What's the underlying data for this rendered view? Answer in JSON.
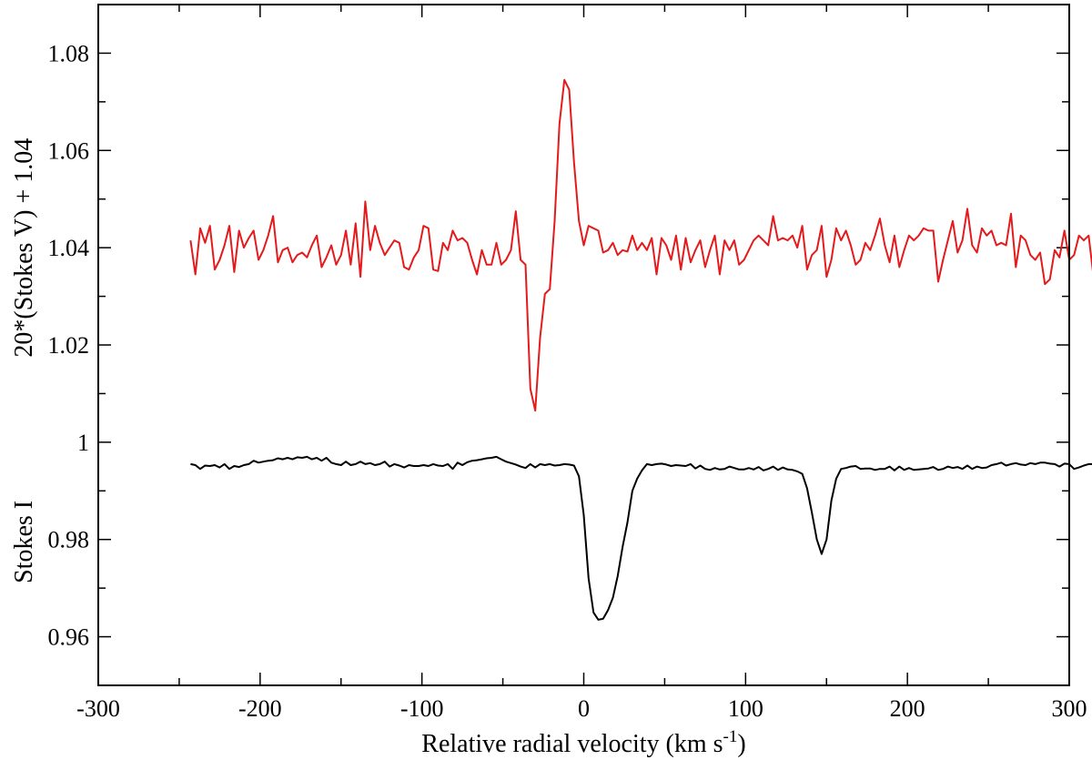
{
  "chart_data": {
    "type": "line",
    "title": "",
    "xlabel": {
      "prefix": "Relative radial velocity (km s",
      "superscript": "-1",
      "suffix": ")"
    },
    "ylabel_upper": "20*(Stokes V) + 1.04",
    "ylabel_lower": "Stokes I",
    "xlim": [
      -300,
      300
    ],
    "ylim": [
      0.95,
      1.09
    ],
    "x_ticks": [
      -300,
      -200,
      -100,
      0,
      100,
      200,
      300
    ],
    "x_tick_labels": [
      "-300",
      "-200",
      "-100",
      "0",
      "100",
      "200",
      "300"
    ],
    "y_ticks": [
      0.96,
      0.98,
      1.0,
      1.02,
      1.04,
      1.06,
      1.08
    ],
    "y_tick_labels": [
      "0.96",
      "0.98",
      "1",
      "1.02",
      "1.04",
      "1.06",
      "1.08"
    ],
    "grid": false,
    "legend": "none",
    "series": [
      {
        "color": "#e41a1c",
        "x_start": -243,
        "x_step": 3,
        "y": [
          1.0415,
          1.0345,
          1.044,
          1.041,
          1.0445,
          1.0355,
          1.0375,
          1.0405,
          1.0445,
          1.035,
          1.0435,
          1.04,
          1.042,
          1.0435,
          1.0375,
          1.0395,
          1.0425,
          1.0465,
          1.037,
          1.0395,
          1.04,
          1.037,
          1.0385,
          1.039,
          1.038,
          1.0405,
          1.0425,
          1.036,
          1.038,
          1.0405,
          1.0365,
          1.0385,
          1.0435,
          1.0365,
          1.045,
          1.034,
          1.0495,
          1.0395,
          1.0445,
          1.041,
          1.0385,
          1.04,
          1.0415,
          1.041,
          1.036,
          1.0355,
          1.038,
          1.0395,
          1.0445,
          1.044,
          1.0355,
          1.0352,
          1.041,
          1.0395,
          1.0435,
          1.0415,
          1.042,
          1.041,
          1.0375,
          1.0345,
          1.0395,
          1.0365,
          1.0365,
          1.041,
          1.0365,
          1.0375,
          1.0395,
          1.0475,
          1.0375,
          1.0365,
          1.011,
          1.0065,
          1.0215,
          1.0305,
          1.0315,
          1.0455,
          1.0655,
          1.0745,
          1.0725,
          1.0575,
          1.0455,
          1.0405,
          1.0445,
          1.044,
          1.0435,
          1.039,
          1.0395,
          1.041,
          1.0385,
          1.0395,
          1.0392,
          1.0425,
          1.0395,
          1.041,
          1.0395,
          1.042,
          1.0345,
          1.042,
          1.0405,
          1.0375,
          1.0425,
          1.0355,
          1.042,
          1.037,
          1.0395,
          1.0415,
          1.036,
          1.0395,
          1.0425,
          1.0345,
          1.0415,
          1.0395,
          1.0415,
          1.0365,
          1.0375,
          1.0395,
          1.0415,
          1.0425,
          1.0415,
          1.0405,
          1.0465,
          1.0415,
          1.042,
          1.0415,
          1.0425,
          1.04,
          1.0445,
          1.0355,
          1.0385,
          1.0395,
          1.0445,
          1.034,
          1.0375,
          1.044,
          1.0415,
          1.0435,
          1.0405,
          1.0365,
          1.0375,
          1.041,
          1.0395,
          1.0425,
          1.046,
          1.0405,
          1.037,
          1.0425,
          1.036,
          1.0395,
          1.0425,
          1.0415,
          1.0425,
          1.044,
          1.0435,
          1.0435,
          1.033,
          1.0375,
          1.0415,
          1.0455,
          1.039,
          1.0415,
          1.048,
          1.0405,
          1.039,
          1.044,
          1.0425,
          1.0435,
          1.0405,
          1.041,
          1.0405,
          1.047,
          1.036,
          1.0425,
          1.0415,
          1.0385,
          1.0375,
          1.039,
          1.0325,
          1.0335,
          1.0395,
          1.038,
          1.0435,
          1.0375,
          1.0385,
          1.0425,
          1.0415,
          1.0425,
          1.034,
          1.0415,
          1.0485,
          1.0345,
          1.0355,
          1.0415,
          1.0395,
          1.0345,
          1.0415,
          1.0395
        ]
      },
      {
        "color": "#000000",
        "x_start": -243,
        "x_step": 3,
        "y": [
          0.9955,
          0.9953,
          0.9945,
          0.9952,
          0.9951,
          0.9953,
          0.9948,
          0.9955,
          0.9945,
          0.9951,
          0.9949,
          0.9953,
          0.9955,
          0.9962,
          0.9958,
          0.996,
          0.9962,
          0.9963,
          0.9967,
          0.9965,
          0.9968,
          0.9965,
          0.9969,
          0.9968,
          0.997,
          0.9965,
          0.9968,
          0.9962,
          0.9968,
          0.9958,
          0.9955,
          0.9953,
          0.996,
          0.9953,
          0.9955,
          0.996,
          0.9955,
          0.9957,
          0.9953,
          0.9955,
          0.996,
          0.995,
          0.9955,
          0.9952,
          0.9948,
          0.9953,
          0.9951,
          0.9951,
          0.9953,
          0.9951,
          0.9955,
          0.9952,
          0.9951,
          0.9955,
          0.9945,
          0.9958,
          0.9953,
          0.9959,
          0.9962,
          0.9963,
          0.9965,
          0.9967,
          0.9968,
          0.997,
          0.9965,
          0.996,
          0.9957,
          0.9954,
          0.995,
          0.9947,
          0.9955,
          0.9948,
          0.9955,
          0.9953,
          0.9955,
          0.9952,
          0.9953,
          0.9955,
          0.9954,
          0.9952,
          0.993,
          0.985,
          0.972,
          0.965,
          0.9635,
          0.9637,
          0.9655,
          0.968,
          0.9725,
          0.9785,
          0.9835,
          0.99,
          0.9925,
          0.9942,
          0.9955,
          0.9953,
          0.9955,
          0.9956,
          0.9954,
          0.9951,
          0.9953,
          0.9952,
          0.9951,
          0.9955,
          0.9946,
          0.9952,
          0.9945,
          0.9943,
          0.9947,
          0.9944,
          0.9945,
          0.995,
          0.9947,
          0.9944,
          0.9944,
          0.9947,
          0.9944,
          0.9949,
          0.9942,
          0.9945,
          0.995,
          0.9943,
          0.9948,
          0.9944,
          0.9943,
          0.994,
          0.9935,
          0.9905,
          0.9855,
          0.98,
          0.977,
          0.98,
          0.988,
          0.9925,
          0.9945,
          0.9947,
          0.995,
          0.9951,
          0.9945,
          0.9946,
          0.9946,
          0.9943,
          0.9945,
          0.9945,
          0.995,
          0.9942,
          0.995,
          0.9943,
          0.9947,
          0.9943,
          0.9944,
          0.9945,
          0.9946,
          0.9949,
          0.9943,
          0.9945,
          0.995,
          0.9947,
          0.9949,
          0.9945,
          0.9952,
          0.9945,
          0.995,
          0.9947,
          0.9948,
          0.9953,
          0.9955,
          0.9958,
          0.9952,
          0.9955,
          0.9957,
          0.9954,
          0.9953,
          0.9957,
          0.9955,
          0.9958,
          0.9958,
          0.9956,
          0.9955,
          0.995,
          0.9956,
          0.9955,
          0.9945,
          0.9948,
          0.9952,
          0.9955,
          0.9955,
          0.9953,
          0.995,
          0.9935,
          0.9955,
          0.995,
          0.9945,
          0.9958,
          0.9958,
          0.9948,
          0.996,
          0.9958,
          0.9945,
          0.9933,
          0.9955,
          0.9943
        ]
      }
    ]
  }
}
